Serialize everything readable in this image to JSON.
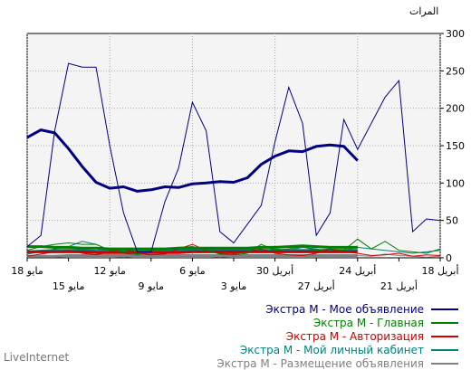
{
  "unit_label": "المرات",
  "watermark": "LiveInternet",
  "chart_data": {
    "type": "line",
    "ylim": [
      0,
      300
    ],
    "y_ticks": [
      0,
      50,
      100,
      150,
      200,
      250,
      300
    ],
    "grid": true,
    "x_ticks_top_row": [
      {
        "i": 0,
        "label": "18 مايو"
      },
      {
        "i": 6,
        "label": "12 مايو"
      },
      {
        "i": 12,
        "label": "6 مايو"
      },
      {
        "i": 18,
        "label": "30 أبريل"
      },
      {
        "i": 24,
        "label": "24 أبريل"
      },
      {
        "i": 30,
        "label": "18 أبريل"
      }
    ],
    "x_ticks_bottom_row": [
      {
        "i": 3,
        "label": "15 مايو"
      },
      {
        "i": 9,
        "label": "9 مايو"
      },
      {
        "i": 15,
        "label": "3 مايو"
      },
      {
        "i": 21,
        "label": "27 أبريل"
      },
      {
        "i": 27,
        "label": "21 أبريل"
      }
    ],
    "series": [
      {
        "name": "Экстра М - Мое объявление",
        "color": "#000080",
        "thin": [
          15,
          30,
          170,
          260,
          255,
          255,
          150,
          60,
          8,
          8,
          75,
          120,
          208,
          170,
          35,
          20,
          45,
          70,
          155,
          228,
          180,
          30,
          60,
          185,
          145,
          180,
          215,
          237,
          35,
          52,
          50
        ],
        "thick": [
          161,
          171,
          167,
          146,
          122,
          101,
          93,
          95,
          89,
          91,
          95,
          94,
          99,
          100,
          102,
          101,
          107,
          125,
          136,
          143,
          142,
          149,
          151,
          149,
          130
        ]
      },
      {
        "name": "Экстра М - Главная",
        "color": "#008000",
        "thin": [
          10,
          15,
          18,
          20,
          18,
          18,
          10,
          8,
          5,
          10,
          12,
          14,
          15,
          10,
          5,
          4,
          6,
          18,
          10,
          12,
          15,
          10,
          12,
          10,
          25,
          12,
          22,
          10,
          8,
          6,
          12
        ],
        "thick": [
          15,
          15,
          14,
          14,
          13,
          13,
          12,
          12,
          12,
          12,
          12,
          13,
          13,
          13,
          13,
          13,
          13,
          14,
          14,
          15,
          16,
          15,
          14,
          14,
          14
        ]
      },
      {
        "name": "Экстра М - Авторизация",
        "color": "#cc0000",
        "thin": [
          2,
          5,
          8,
          10,
          6,
          4,
          8,
          12,
          6,
          4,
          5,
          12,
          18,
          10,
          6,
          5,
          8,
          12,
          6,
          4,
          3,
          6,
          12,
          8,
          6,
          3,
          4,
          6,
          2,
          4,
          3
        ],
        "thick": [
          8,
          8,
          8,
          8,
          8,
          7,
          7,
          7,
          7,
          7,
          7,
          7,
          8,
          8,
          8,
          8,
          8,
          8,
          8,
          8,
          8,
          8,
          8,
          8,
          8
        ]
      },
      {
        "name": "Экстра М - Мой личный кабинет",
        "color": "#008080",
        "thin": [
          5,
          8,
          12,
          15,
          22,
          18,
          10,
          6,
          4,
          8,
          12,
          10,
          15,
          12,
          8,
          6,
          10,
          15,
          12,
          10,
          14,
          12,
          8,
          10,
          14,
          12,
          10,
          8,
          6,
          8,
          10
        ],
        "thick": [
          8,
          9,
          10,
          10,
          10,
          9,
          9,
          9,
          9,
          9,
          9,
          10,
          10,
          10,
          10,
          10,
          10,
          10,
          10,
          10,
          10,
          10,
          10,
          10,
          10
        ]
      },
      {
        "name": "Экстра М - Размещение объявления",
        "color": "#808080",
        "thin": [
          1,
          2,
          3,
          2,
          4,
          3,
          2,
          1,
          2,
          3,
          2,
          4,
          3,
          2,
          1,
          2,
          3,
          2,
          4,
          3,
          2,
          3,
          2,
          4,
          3,
          2,
          5,
          3,
          2,
          1,
          2
        ],
        "thick": [
          2,
          2,
          2,
          3,
          3,
          3,
          3,
          3,
          3,
          3,
          3,
          3,
          3,
          3,
          3,
          3,
          3,
          3,
          3,
          3,
          3,
          3,
          3,
          3,
          3
        ]
      }
    ]
  }
}
